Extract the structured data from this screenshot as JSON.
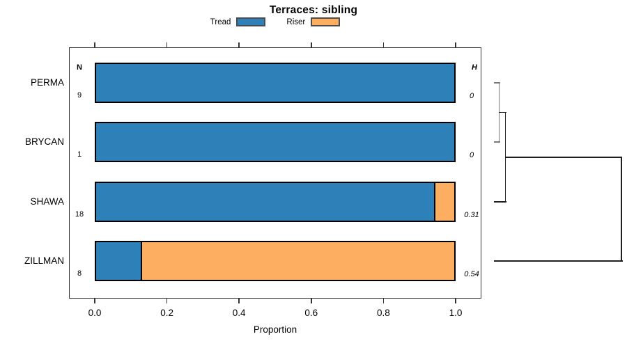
{
  "header": {
    "title": "Terraces: sibling"
  },
  "legend": {
    "items": [
      {
        "label": "Tread",
        "color": "#2e81b8"
      },
      {
        "label": "Riser",
        "color": "#fdae61"
      }
    ]
  },
  "axis": {
    "xlabel": "Proportion"
  },
  "chart_data": {
    "type": "bar",
    "orientation": "horizontal-stacked",
    "title": "Terraces: sibling",
    "xlabel": "Proportion",
    "xlim": [
      0.0,
      1.0
    ],
    "x_ticks": [
      0.0,
      0.2,
      0.4,
      0.6,
      0.8,
      1.0
    ],
    "grid": false,
    "legend_position": "top",
    "categories": [
      "PERMA",
      "BRYCAN",
      "SHAWA",
      "ZILLMAN"
    ],
    "series": [
      {
        "name": "Tread",
        "color": "#2e81b8",
        "values": [
          1.0,
          1.0,
          0.944,
          0.125
        ]
      },
      {
        "name": "Riser",
        "color": "#fdae61",
        "values": [
          0.0,
          0.0,
          0.056,
          0.875
        ]
      }
    ],
    "annotations": {
      "n_header": "N",
      "n_values": [
        "9",
        "1",
        "18",
        "8"
      ],
      "h_header": "H",
      "h_values": [
        "0",
        "0",
        "0.31",
        "0.54"
      ]
    },
    "dendrogram": {
      "leaf_order": [
        "PERMA",
        "BRYCAN",
        "SHAWA",
        "ZILLMAN"
      ],
      "line_thickness_px": 1.5,
      "merges": [
        {
          "name": "cluster1",
          "children": [
            "PERMA",
            "BRYCAN"
          ],
          "height": 0.04,
          "color": "#7a7a7a"
        },
        {
          "name": "cluster2",
          "children": [
            "cluster1",
            "SHAWA"
          ],
          "height": 0.09,
          "color": "#1f1f1f"
        },
        {
          "name": "cluster3",
          "children": [
            "cluster2",
            "ZILLMAN"
          ],
          "height": 1.0,
          "color": "#1f1f1f"
        }
      ]
    }
  }
}
